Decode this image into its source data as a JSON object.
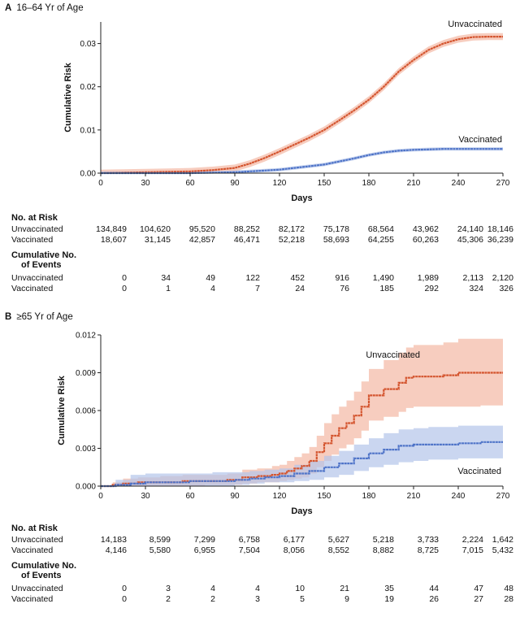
{
  "chart_data": [
    {
      "type": "line",
      "panel_letter": "A",
      "title": "16–64 Yr of Age",
      "xlabel": "Days",
      "ylabel": "Cumulative Risk",
      "xlim": [
        0,
        270
      ],
      "ylim": [
        0,
        0.035
      ],
      "xticks": [
        "0",
        "30",
        "60",
        "90",
        "120",
        "150",
        "180",
        "210",
        "240",
        "270"
      ],
      "yticks": [
        "0.00",
        "0.01",
        "0.02",
        "0.03"
      ],
      "series": [
        {
          "name": "Unvaccinated",
          "color": "#d4552f",
          "band_color": "#f3b8a4",
          "x": [
            0,
            15,
            30,
            45,
            60,
            75,
            90,
            100,
            110,
            120,
            130,
            140,
            150,
            160,
            170,
            180,
            190,
            200,
            210,
            220,
            230,
            240,
            250,
            260,
            270
          ],
          "y": [
            0,
            0.0001,
            0.0002,
            0.0003,
            0.0004,
            0.0007,
            0.0012,
            0.0022,
            0.0035,
            0.005,
            0.0066,
            0.0082,
            0.01,
            0.0122,
            0.0145,
            0.017,
            0.02,
            0.0235,
            0.0262,
            0.0285,
            0.03,
            0.031,
            0.0315,
            0.0316,
            0.0316
          ],
          "band": 0.0008
        },
        {
          "name": "Vaccinated",
          "color": "#4f74c8",
          "band_color": "#b4c4ea",
          "x": [
            0,
            30,
            60,
            90,
            100,
            110,
            120,
            130,
            140,
            150,
            160,
            170,
            180,
            190,
            200,
            210,
            220,
            230,
            240,
            250,
            260,
            270
          ],
          "y": [
            0,
            0,
            0,
            0.0002,
            0.0004,
            0.0006,
            0.0008,
            0.0012,
            0.0016,
            0.002,
            0.0027,
            0.0034,
            0.0042,
            0.0048,
            0.0052,
            0.0054,
            0.0055,
            0.0056,
            0.0056,
            0.0056,
            0.0056,
            0.0056
          ],
          "band": 0.0004
        }
      ]
    },
    {
      "type": "line",
      "panel_letter": "B",
      "title": "≥65 Yr of Age",
      "xlabel": "Days",
      "ylabel": "Cumulative Risk",
      "xlim": [
        0,
        270
      ],
      "ylim": [
        0,
        0.012
      ],
      "xticks": [
        "0",
        "30",
        "60",
        "90",
        "120",
        "150",
        "180",
        "210",
        "240",
        "270"
      ],
      "yticks": [
        "0.000",
        "0.003",
        "0.006",
        "0.009",
        "0.012"
      ],
      "series": [
        {
          "name": "Unvaccinated",
          "color": "#d4552f",
          "band_color": "#f3b8a4",
          "x": [
            0,
            8,
            15,
            25,
            40,
            55,
            70,
            85,
            95,
            105,
            115,
            120,
            125,
            130,
            135,
            140,
            145,
            150,
            155,
            160,
            165,
            170,
            175,
            180,
            190,
            200,
            205,
            210,
            230,
            240,
            255,
            270
          ],
          "y": [
            0,
            0.0001,
            0.0002,
            0.0003,
            0.0003,
            0.0004,
            0.0004,
            0.0005,
            0.0007,
            0.0008,
            0.0009,
            0.001,
            0.0012,
            0.0014,
            0.0016,
            0.002,
            0.0027,
            0.0034,
            0.004,
            0.0046,
            0.005,
            0.0056,
            0.0063,
            0.0072,
            0.0077,
            0.0082,
            0.0086,
            0.0087,
            0.0088,
            0.009,
            0.009,
            0.009
          ],
          "lower": [
            0,
            0,
            0,
            0,
            0,
            0,
            0.0001,
            0.0001,
            0.0002,
            0.0003,
            0.0003,
            0.0004,
            0.0005,
            0.0006,
            0.0007,
            0.001,
            0.0015,
            0.002,
            0.0025,
            0.003,
            0.0033,
            0.0038,
            0.0044,
            0.0052,
            0.0055,
            0.0059,
            0.0062,
            0.0063,
            0.0063,
            0.0063,
            0.0064,
            0.0064
          ],
          "upper": [
            0,
            0.0003,
            0.0006,
            0.0007,
            0.0008,
            0.0009,
            0.0009,
            0.001,
            0.0013,
            0.0014,
            0.0016,
            0.0017,
            0.002,
            0.0023,
            0.0026,
            0.0031,
            0.004,
            0.005,
            0.0057,
            0.0063,
            0.0068,
            0.0075,
            0.0083,
            0.0093,
            0.01,
            0.0106,
            0.011,
            0.0112,
            0.0114,
            0.0117,
            0.0117,
            0.0117
          ]
        },
        {
          "name": "Vaccinated",
          "color": "#4f74c8",
          "band_color": "#b4c4ea",
          "x": [
            0,
            10,
            20,
            30,
            45,
            60,
            75,
            90,
            100,
            110,
            120,
            130,
            140,
            150,
            160,
            170,
            180,
            190,
            200,
            210,
            220,
            240,
            255,
            270
          ],
          "y": [
            0,
            0.0001,
            0.0002,
            0.0003,
            0.0003,
            0.0004,
            0.0004,
            0.0005,
            0.0006,
            0.0007,
            0.0008,
            0.001,
            0.0012,
            0.0015,
            0.0018,
            0.0022,
            0.0026,
            0.0029,
            0.0032,
            0.0033,
            0.0033,
            0.0034,
            0.0035,
            0.0035
          ],
          "lower": [
            0,
            0,
            0,
            0,
            0,
            0,
            0,
            0.0001,
            0.0002,
            0.0003,
            0.0003,
            0.0004,
            0.0005,
            0.0007,
            0.0009,
            0.0012,
            0.0015,
            0.0017,
            0.0019,
            0.002,
            0.0021,
            0.0022,
            0.0022,
            0.0022
          ],
          "upper": [
            0,
            0.0005,
            0.0009,
            0.001,
            0.001,
            0.001,
            0.0011,
            0.0011,
            0.0012,
            0.0013,
            0.0014,
            0.0017,
            0.002,
            0.0024,
            0.0028,
            0.0033,
            0.0038,
            0.0042,
            0.0045,
            0.0046,
            0.0047,
            0.0048,
            0.0048,
            0.0048
          ]
        }
      ]
    }
  ],
  "tables": [
    {
      "at_risk_title": "No. at Risk",
      "at_risk": [
        {
          "label": "Unvaccinated",
          "values": [
            "134,849",
            "104,620",
            "95,520",
            "88,252",
            "82,172",
            "75,178",
            "68,564",
            "43,962",
            "24,140",
            "18,146"
          ]
        },
        {
          "label": "Vaccinated",
          "values": [
            "18,607",
            "31,145",
            "42,857",
            "46,471",
            "52,218",
            "58,693",
            "64,255",
            "60,263",
            "45,306",
            "36,239"
          ]
        }
      ],
      "events_title_1": "Cumulative No.",
      "events_title_2": "of Events",
      "events": [
        {
          "label": "Unvaccinated",
          "values": [
            "0",
            "34",
            "49",
            "122",
            "452",
            "916",
            "1,490",
            "1,989",
            "2,113",
            "2,120"
          ]
        },
        {
          "label": "Vaccinated",
          "values": [
            "0",
            "1",
            "4",
            "7",
            "24",
            "76",
            "185",
            "292",
            "324",
            "326"
          ]
        }
      ]
    },
    {
      "at_risk_title": "No. at Risk",
      "at_risk": [
        {
          "label": "Unvaccinated",
          "values": [
            "14,183",
            "8,599",
            "7,299",
            "6,758",
            "6,177",
            "5,627",
            "5,218",
            "3,733",
            "2,224",
            "1,642"
          ]
        },
        {
          "label": "Vaccinated",
          "values": [
            "4,146",
            "5,580",
            "6,955",
            "7,504",
            "8,056",
            "8,552",
            "8,882",
            "8,725",
            "7,015",
            "5,432"
          ]
        }
      ],
      "events_title_1": "Cumulative No.",
      "events_title_2": "of Events",
      "events": [
        {
          "label": "Unvaccinated",
          "values": [
            "0",
            "3",
            "4",
            "4",
            "10",
            "21",
            "35",
            "44",
            "47",
            "48"
          ]
        },
        {
          "label": "Vaccinated",
          "values": [
            "0",
            "2",
            "2",
            "3",
            "5",
            "9",
            "19",
            "26",
            "27",
            "28"
          ]
        }
      ]
    }
  ]
}
